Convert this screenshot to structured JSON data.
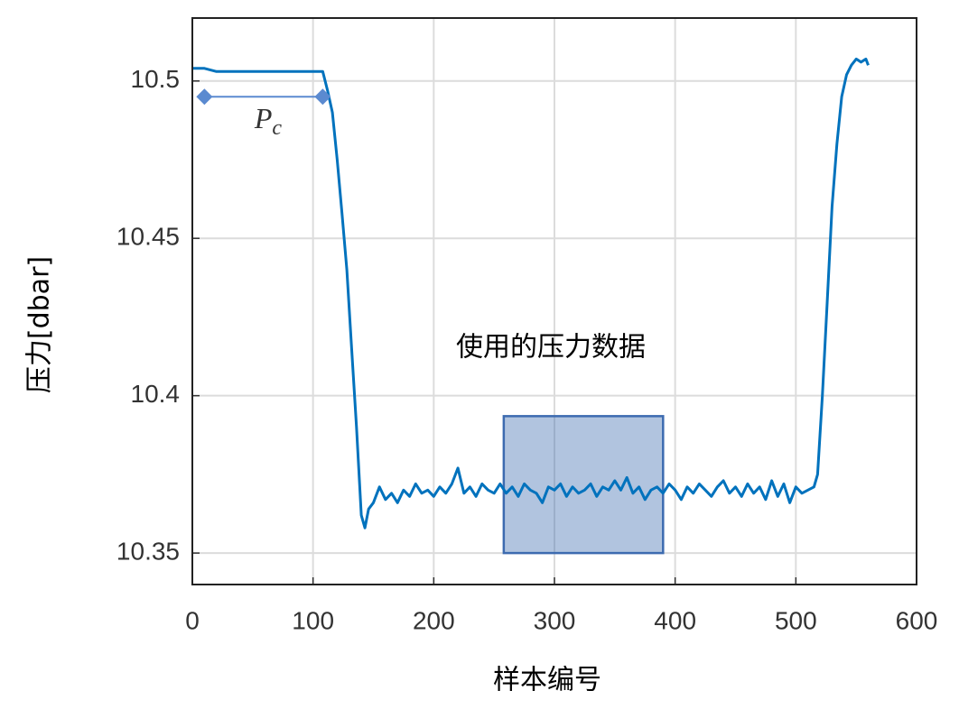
{
  "chart_data": {
    "type": "line",
    "xlabel": "样本编号",
    "ylabel": "压力[dbar]",
    "xlim": [
      0,
      600
    ],
    "ylim": [
      10.34,
      10.52
    ],
    "xticks": [
      0,
      100,
      200,
      300,
      400,
      500,
      600
    ],
    "yticks": [
      10.35,
      10.4,
      10.45,
      10.5
    ],
    "grid": true,
    "series": [
      {
        "color": "#0072bd",
        "x": [
          0,
          10,
          20,
          30,
          40,
          50,
          60,
          70,
          80,
          90,
          100,
          108,
          112,
          116,
          120,
          124,
          128,
          132,
          136,
          140,
          143,
          146,
          150,
          155,
          160,
          165,
          170,
          175,
          180,
          185,
          190,
          195,
          200,
          205,
          210,
          215,
          220,
          225,
          230,
          235,
          240,
          245,
          250,
          255,
          260,
          265,
          270,
          275,
          280,
          285,
          290,
          295,
          300,
          305,
          310,
          315,
          320,
          325,
          330,
          335,
          340,
          345,
          350,
          355,
          360,
          365,
          370,
          375,
          380,
          385,
          390,
          395,
          400,
          405,
          410,
          415,
          420,
          425,
          430,
          435,
          440,
          445,
          450,
          455,
          460,
          465,
          470,
          475,
          480,
          485,
          490,
          495,
          500,
          505,
          510,
          515,
          518,
          522,
          526,
          530,
          534,
          538,
          542,
          546,
          550,
          554,
          558,
          560
        ],
        "values": [
          10.504,
          10.504,
          10.503,
          10.503,
          10.503,
          10.503,
          10.503,
          10.503,
          10.503,
          10.503,
          10.503,
          10.503,
          10.497,
          10.49,
          10.475,
          10.458,
          10.44,
          10.415,
          10.39,
          10.362,
          10.358,
          10.364,
          10.366,
          10.371,
          10.367,
          10.369,
          10.366,
          10.37,
          10.368,
          10.372,
          10.369,
          10.37,
          10.368,
          10.371,
          10.369,
          10.372,
          10.377,
          10.369,
          10.371,
          10.368,
          10.372,
          10.37,
          10.369,
          10.372,
          10.369,
          10.371,
          10.368,
          10.372,
          10.37,
          10.369,
          10.366,
          10.371,
          10.37,
          10.372,
          10.368,
          10.371,
          10.369,
          10.37,
          10.372,
          10.368,
          10.371,
          10.37,
          10.373,
          10.37,
          10.374,
          10.369,
          10.371,
          10.367,
          10.37,
          10.371,
          10.369,
          10.372,
          10.37,
          10.367,
          10.371,
          10.369,
          10.372,
          10.37,
          10.368,
          10.371,
          10.373,
          10.369,
          10.371,
          10.368,
          10.372,
          10.369,
          10.371,
          10.367,
          10.373,
          10.368,
          10.372,
          10.366,
          10.371,
          10.369,
          10.37,
          10.371,
          10.375,
          10.4,
          10.43,
          10.46,
          10.48,
          10.495,
          10.502,
          10.505,
          10.507,
          10.506,
          10.507,
          10.505
        ]
      }
    ],
    "annotations": [
      {
        "text": "P",
        "subscript": "c",
        "color": "#5b8ad0",
        "x": [
          10,
          108
        ],
        "y": 10.495
      },
      {
        "text": "使用的压力数据",
        "x": [
          258,
          390
        ],
        "y": [
          10.35,
          10.3935
        ],
        "color": "#3d6bb0"
      }
    ]
  }
}
